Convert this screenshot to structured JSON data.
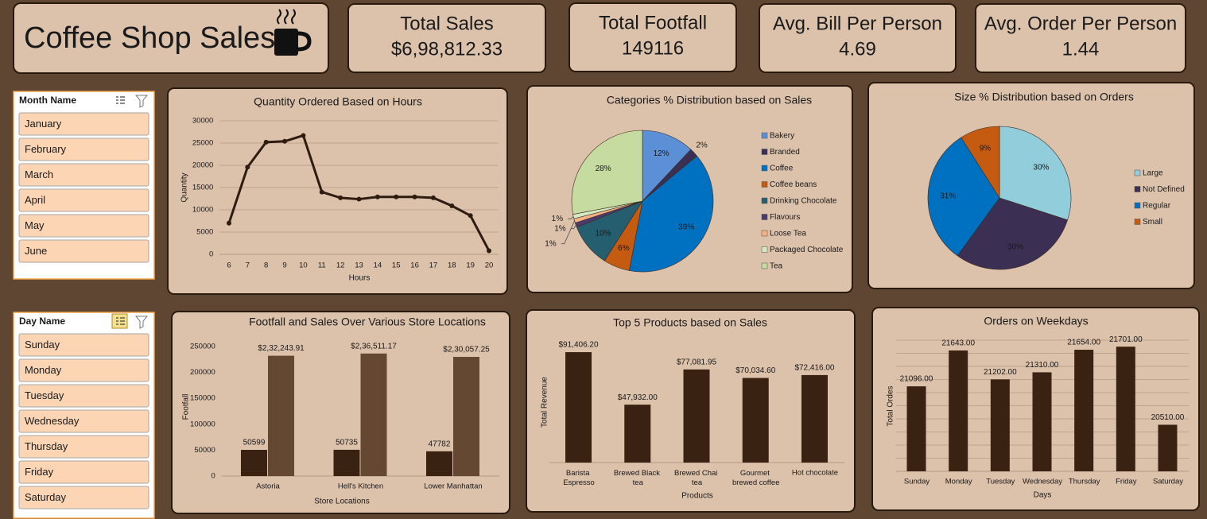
{
  "header": {
    "title": "Coffee Shop Sales"
  },
  "kpis": [
    {
      "label": "Total Sales",
      "value": "$6,98,812.33"
    },
    {
      "label": "Total Footfall",
      "value": "149116"
    },
    {
      "label": "Avg. Bill Per Person",
      "value": "4.69"
    },
    {
      "label": "Avg. Order Per Person",
      "value": "1.44"
    }
  ],
  "slicers": [
    {
      "title": "Month Name",
      "items": [
        "January",
        "February",
        "March",
        "April",
        "May",
        "June"
      ]
    },
    {
      "title": "Day Name",
      "items": [
        "Sunday",
        "Monday",
        "Tuesday",
        "Wednesday",
        "Thursday",
        "Friday",
        "Saturday"
      ]
    }
  ],
  "chart_data": [
    {
      "type": "line",
      "title": "Quantity Ordered Based on Hours",
      "x_label": "Hours",
      "y_label": "Quantity",
      "categories": [
        "6",
        "7",
        "8",
        "9",
        "10",
        "11",
        "12",
        "13",
        "14",
        "15",
        "16",
        "17",
        "18",
        "19",
        "20"
      ],
      "values": [
        7000,
        19600,
        25200,
        25400,
        26700,
        14000,
        12700,
        12400,
        12900,
        12900,
        12900,
        12700,
        10900,
        8700,
        800
      ],
      "color": "#2e1c10",
      "ylim": [
        0,
        30000
      ],
      "yticks": [
        0,
        5000,
        10000,
        15000,
        20000,
        25000,
        30000
      ],
      "grid": true
    },
    {
      "type": "pie",
      "title": "Categories % Distribution based on Sales",
      "categories": [
        "Bakery",
        "Branded",
        "Coffee",
        "Coffee beans",
        "Drinking Chocolate",
        "Flavours",
        "Loose Tea",
        "Packaged Chocolate",
        "Tea"
      ],
      "values": [
        12,
        2,
        39,
        6,
        10,
        1,
        1,
        1,
        28
      ],
      "value_labels": [
        "12%",
        "2%",
        "39%",
        "6%",
        "10%",
        "1%",
        "1%",
        "1%",
        "28%"
      ],
      "colors": [
        "#5b8fd6",
        "#3b2f54",
        "#0070c0",
        "#c55a11",
        "#255e6e",
        "#4b3a6b",
        "#f4b183",
        "#d5e8c4",
        "#c5dba0"
      ],
      "legend": "right"
    },
    {
      "type": "pie",
      "title": "Size % Distribution based on Orders",
      "categories": [
        "Large",
        "Not Defined",
        "Regular",
        "Small"
      ],
      "values": [
        30,
        30,
        31,
        9
      ],
      "value_labels": [
        "30%",
        "30%",
        "31%",
        "9%"
      ],
      "colors": [
        "#92cddc",
        "#3b2f54",
        "#0070c0",
        "#c55a11"
      ],
      "legend": "right"
    },
    {
      "type": "bar",
      "title": "Footfall and Sales Over Various Store Locations",
      "x_label": "Store Locations",
      "y_label": "Footfall",
      "categories": [
        "Astoria",
        "Hell's Kitchen",
        "Lower Manhattan"
      ],
      "series": [
        {
          "color": "#3a2213",
          "values": [
            50599,
            50735,
            47782
          ]
        },
        {
          "color": "#654832",
          "values": [
            232243.91,
            236511.17,
            230057.25
          ],
          "value_labels": [
            "$2,32,243.91",
            "$2,36,511.17",
            "$2,30,057.25"
          ]
        }
      ],
      "ylim": [
        0,
        250000
      ],
      "yticks": [
        0,
        50000,
        100000,
        150000,
        200000,
        250000
      ],
      "grid": false
    },
    {
      "type": "bar",
      "title": "Top 5 Products based on Sales",
      "x_label": "Products",
      "y_label": "Total Revenue",
      "categories": [
        "Barista Espresso",
        "Brewed Black tea",
        "Brewed Chai tea",
        "Gourmet brewed coffee",
        "Hot chocolate"
      ],
      "values": [
        91406.2,
        47932,
        77081.95,
        70034.6,
        72416
      ],
      "value_labels": [
        "$91,406.20",
        "$47,932.00",
        "$77,081.95",
        "$70,034.60",
        "$72,416.00"
      ],
      "color": "#3a2213",
      "ylim": [
        0,
        100000
      ],
      "grid": false
    },
    {
      "type": "bar",
      "title": "Orders on Weekdays",
      "x_label": "Days",
      "y_label": "Total Ordes",
      "categories": [
        "Sunday",
        "Monday",
        "Tuesday",
        "Wednesday",
        "Thursday",
        "Friday",
        "Saturday"
      ],
      "values": [
        21096,
        21643,
        21202,
        21310,
        21654,
        21701,
        20510
      ],
      "value_labels": [
        "21096.00",
        "21643.00",
        "21202.00",
        "21310.00",
        "21654.00",
        "21701.00",
        "20510.00"
      ],
      "color": "#3a2213",
      "ylim": [
        19800,
        21800
      ],
      "yticks": [
        19800,
        20000,
        20200,
        20400,
        20600,
        20800,
        21000,
        21200,
        21400,
        21600,
        21800
      ],
      "grid": true,
      "tick_labels": false
    }
  ]
}
